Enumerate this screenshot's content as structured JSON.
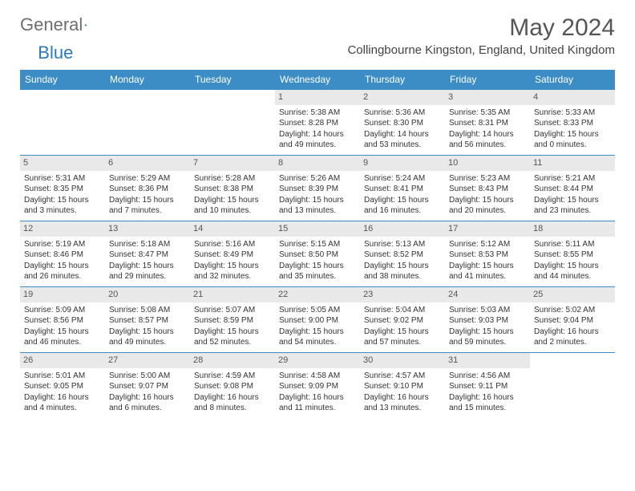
{
  "logo": {
    "word1": "General",
    "word2": "Blue"
  },
  "title": "May 2024",
  "location": "Collingbourne Kingston, England, United Kingdom",
  "header_bg": "#3c8dc5",
  "day_bg": "#e9e9e9",
  "border_color": "#3c8dc5",
  "days": [
    "Sunday",
    "Monday",
    "Tuesday",
    "Wednesday",
    "Thursday",
    "Friday",
    "Saturday"
  ],
  "weeks": [
    [
      null,
      null,
      null,
      {
        "n": "1",
        "sr": "Sunrise: 5:38 AM",
        "ss": "Sunset: 8:28 PM",
        "d1": "Daylight: 14 hours",
        "d2": "and 49 minutes."
      },
      {
        "n": "2",
        "sr": "Sunrise: 5:36 AM",
        "ss": "Sunset: 8:30 PM",
        "d1": "Daylight: 14 hours",
        "d2": "and 53 minutes."
      },
      {
        "n": "3",
        "sr": "Sunrise: 5:35 AM",
        "ss": "Sunset: 8:31 PM",
        "d1": "Daylight: 14 hours",
        "d2": "and 56 minutes."
      },
      {
        "n": "4",
        "sr": "Sunrise: 5:33 AM",
        "ss": "Sunset: 8:33 PM",
        "d1": "Daylight: 15 hours",
        "d2": "and 0 minutes."
      }
    ],
    [
      {
        "n": "5",
        "sr": "Sunrise: 5:31 AM",
        "ss": "Sunset: 8:35 PM",
        "d1": "Daylight: 15 hours",
        "d2": "and 3 minutes."
      },
      {
        "n": "6",
        "sr": "Sunrise: 5:29 AM",
        "ss": "Sunset: 8:36 PM",
        "d1": "Daylight: 15 hours",
        "d2": "and 7 minutes."
      },
      {
        "n": "7",
        "sr": "Sunrise: 5:28 AM",
        "ss": "Sunset: 8:38 PM",
        "d1": "Daylight: 15 hours",
        "d2": "and 10 minutes."
      },
      {
        "n": "8",
        "sr": "Sunrise: 5:26 AM",
        "ss": "Sunset: 8:39 PM",
        "d1": "Daylight: 15 hours",
        "d2": "and 13 minutes."
      },
      {
        "n": "9",
        "sr": "Sunrise: 5:24 AM",
        "ss": "Sunset: 8:41 PM",
        "d1": "Daylight: 15 hours",
        "d2": "and 16 minutes."
      },
      {
        "n": "10",
        "sr": "Sunrise: 5:23 AM",
        "ss": "Sunset: 8:43 PM",
        "d1": "Daylight: 15 hours",
        "d2": "and 20 minutes."
      },
      {
        "n": "11",
        "sr": "Sunrise: 5:21 AM",
        "ss": "Sunset: 8:44 PM",
        "d1": "Daylight: 15 hours",
        "d2": "and 23 minutes."
      }
    ],
    [
      {
        "n": "12",
        "sr": "Sunrise: 5:19 AM",
        "ss": "Sunset: 8:46 PM",
        "d1": "Daylight: 15 hours",
        "d2": "and 26 minutes."
      },
      {
        "n": "13",
        "sr": "Sunrise: 5:18 AM",
        "ss": "Sunset: 8:47 PM",
        "d1": "Daylight: 15 hours",
        "d2": "and 29 minutes."
      },
      {
        "n": "14",
        "sr": "Sunrise: 5:16 AM",
        "ss": "Sunset: 8:49 PM",
        "d1": "Daylight: 15 hours",
        "d2": "and 32 minutes."
      },
      {
        "n": "15",
        "sr": "Sunrise: 5:15 AM",
        "ss": "Sunset: 8:50 PM",
        "d1": "Daylight: 15 hours",
        "d2": "and 35 minutes."
      },
      {
        "n": "16",
        "sr": "Sunrise: 5:13 AM",
        "ss": "Sunset: 8:52 PM",
        "d1": "Daylight: 15 hours",
        "d2": "and 38 minutes."
      },
      {
        "n": "17",
        "sr": "Sunrise: 5:12 AM",
        "ss": "Sunset: 8:53 PM",
        "d1": "Daylight: 15 hours",
        "d2": "and 41 minutes."
      },
      {
        "n": "18",
        "sr": "Sunrise: 5:11 AM",
        "ss": "Sunset: 8:55 PM",
        "d1": "Daylight: 15 hours",
        "d2": "and 44 minutes."
      }
    ],
    [
      {
        "n": "19",
        "sr": "Sunrise: 5:09 AM",
        "ss": "Sunset: 8:56 PM",
        "d1": "Daylight: 15 hours",
        "d2": "and 46 minutes."
      },
      {
        "n": "20",
        "sr": "Sunrise: 5:08 AM",
        "ss": "Sunset: 8:57 PM",
        "d1": "Daylight: 15 hours",
        "d2": "and 49 minutes."
      },
      {
        "n": "21",
        "sr": "Sunrise: 5:07 AM",
        "ss": "Sunset: 8:59 PM",
        "d1": "Daylight: 15 hours",
        "d2": "and 52 minutes."
      },
      {
        "n": "22",
        "sr": "Sunrise: 5:05 AM",
        "ss": "Sunset: 9:00 PM",
        "d1": "Daylight: 15 hours",
        "d2": "and 54 minutes."
      },
      {
        "n": "23",
        "sr": "Sunrise: 5:04 AM",
        "ss": "Sunset: 9:02 PM",
        "d1": "Daylight: 15 hours",
        "d2": "and 57 minutes."
      },
      {
        "n": "24",
        "sr": "Sunrise: 5:03 AM",
        "ss": "Sunset: 9:03 PM",
        "d1": "Daylight: 15 hours",
        "d2": "and 59 minutes."
      },
      {
        "n": "25",
        "sr": "Sunrise: 5:02 AM",
        "ss": "Sunset: 9:04 PM",
        "d1": "Daylight: 16 hours",
        "d2": "and 2 minutes."
      }
    ],
    [
      {
        "n": "26",
        "sr": "Sunrise: 5:01 AM",
        "ss": "Sunset: 9:05 PM",
        "d1": "Daylight: 16 hours",
        "d2": "and 4 minutes."
      },
      {
        "n": "27",
        "sr": "Sunrise: 5:00 AM",
        "ss": "Sunset: 9:07 PM",
        "d1": "Daylight: 16 hours",
        "d2": "and 6 minutes."
      },
      {
        "n": "28",
        "sr": "Sunrise: 4:59 AM",
        "ss": "Sunset: 9:08 PM",
        "d1": "Daylight: 16 hours",
        "d2": "and 8 minutes."
      },
      {
        "n": "29",
        "sr": "Sunrise: 4:58 AM",
        "ss": "Sunset: 9:09 PM",
        "d1": "Daylight: 16 hours",
        "d2": "and 11 minutes."
      },
      {
        "n": "30",
        "sr": "Sunrise: 4:57 AM",
        "ss": "Sunset: 9:10 PM",
        "d1": "Daylight: 16 hours",
        "d2": "and 13 minutes."
      },
      {
        "n": "31",
        "sr": "Sunrise: 4:56 AM",
        "ss": "Sunset: 9:11 PM",
        "d1": "Daylight: 16 hours",
        "d2": "and 15 minutes."
      },
      null
    ]
  ]
}
